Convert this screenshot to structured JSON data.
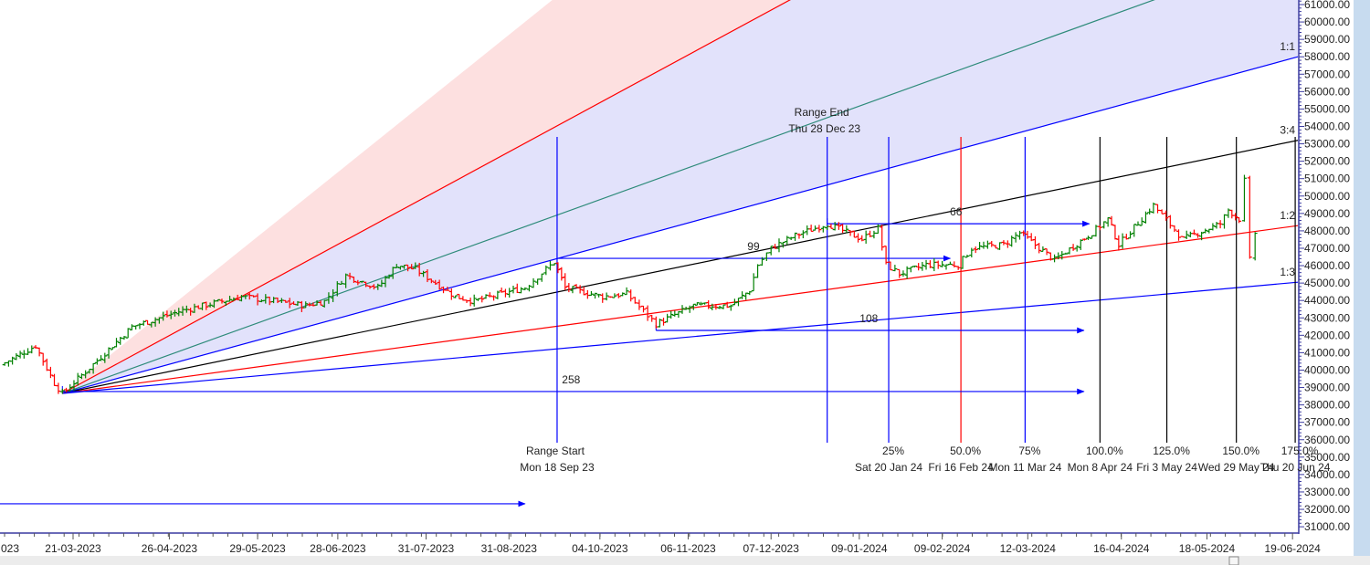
{
  "chart_data": {
    "type": "ohlc-bar",
    "title": "",
    "y_axis": {
      "min": 31000,
      "max": 61000,
      "step": 1000,
      "position": "right",
      "tick_labels": [
        "61000.00",
        "60000.00",
        "59000.00",
        "58000.00",
        "57000.00",
        "56000.00",
        "55000.00",
        "54000.00",
        "53000.00",
        "52000.00",
        "51000.00",
        "50000.00",
        "49000.00",
        "48000.00",
        "47000.00",
        "46000.00",
        "45000.00",
        "44000.00",
        "43000.00",
        "42000.00",
        "41000.00",
        "40000.00",
        "39000.00",
        "38000.00",
        "37000.00",
        "36000.00",
        "35000.00",
        "34000.00",
        "33000.00",
        "32000.00",
        "31000.00"
      ]
    },
    "x_axis": {
      "ticks": [
        {
          "label": "023",
          "date": "2023-02-15"
        },
        {
          "label": "21-03-2023",
          "date": "2023-03-21"
        },
        {
          "label": "26-04-2023",
          "date": "2023-04-26"
        },
        {
          "label": "29-05-2023",
          "date": "2023-05-29"
        },
        {
          "label": "28-06-2023",
          "date": "2023-06-28"
        },
        {
          "label": "31-07-2023",
          "date": "2023-07-31"
        },
        {
          "label": "31-08-2023",
          "date": "2023-08-31"
        },
        {
          "label": "04-10-2023",
          "date": "2023-10-04"
        },
        {
          "label": "06-11-2023",
          "date": "2023-11-06"
        },
        {
          "label": "07-12-2023",
          "date": "2023-12-07"
        },
        {
          "label": "09-01-2024",
          "date": "2024-01-09"
        },
        {
          "label": "09-02-2024",
          "date": "2024-02-09"
        },
        {
          "label": "12-03-2024",
          "date": "2024-03-12"
        },
        {
          "label": "16-04-2024",
          "date": "2024-04-16"
        },
        {
          "label": "18-05-2024",
          "date": "2024-05-18"
        },
        {
          "label": "19-06-2024",
          "date": "2024-06-19"
        }
      ]
    },
    "price_path": [
      [
        "2023-02-22",
        40300
      ],
      [
        "2023-03-07",
        41400
      ],
      [
        "2023-03-14",
        39240
      ],
      [
        "2023-03-17",
        38660
      ],
      [
        "2023-03-30",
        40550
      ],
      [
        "2023-04-12",
        42490
      ],
      [
        "2023-05-01",
        43430
      ],
      [
        "2023-05-23",
        44220
      ],
      [
        "2023-06-16",
        43700
      ],
      [
        "2023-06-23",
        43960
      ],
      [
        "2023-07-01",
        45430
      ],
      [
        "2023-07-13",
        44740
      ],
      [
        "2023-07-20",
        46050
      ],
      [
        "2023-07-27",
        45790
      ],
      [
        "2023-08-11",
        44220
      ],
      [
        "2023-08-18",
        43960
      ],
      [
        "2023-09-06",
        44740
      ],
      [
        "2023-09-17",
        46210
      ],
      [
        "2023-09-21",
        44740
      ],
      [
        "2023-10-05",
        44220
      ],
      [
        "2023-10-14",
        44380
      ],
      [
        "2023-10-25",
        42650
      ],
      [
        "2023-11-08",
        43700
      ],
      [
        "2023-11-22",
        43700
      ],
      [
        "2023-11-29",
        44590
      ],
      [
        "2023-12-02",
        46050
      ],
      [
        "2023-12-07",
        47000
      ],
      [
        "2023-12-16",
        47730
      ],
      [
        "2023-12-28",
        48410
      ],
      [
        "2024-01-10",
        47520
      ],
      [
        "2024-01-16",
        48150
      ],
      [
        "2024-01-19",
        46050
      ],
      [
        "2024-01-24",
        45530
      ],
      [
        "2024-02-03",
        46050
      ],
      [
        "2024-02-15",
        46050
      ],
      [
        "2024-02-20",
        47000
      ],
      [
        "2024-03-03",
        47210
      ],
      [
        "2024-03-09",
        47890
      ],
      [
        "2024-03-22",
        46320
      ],
      [
        "2024-04-05",
        47890
      ],
      [
        "2024-04-11",
        48680
      ],
      [
        "2024-04-15",
        47210
      ],
      [
        "2024-04-28",
        49460
      ],
      [
        "2024-05-09",
        47520
      ],
      [
        "2024-05-23",
        48410
      ],
      [
        "2024-05-26",
        49200
      ],
      [
        "2024-05-30",
        48680
      ],
      [
        "2024-06-01",
        50880
      ],
      [
        "2024-06-03",
        46320
      ],
      [
        "2024-06-05",
        47890
      ]
    ],
    "gann_fan": {
      "origin": {
        "date": "2023-03-17",
        "price": 38660
      },
      "end_date": "2024-06-21",
      "lines": [
        {
          "label": "",
          "end_price": 95660,
          "color": "#ffb0b0",
          "visible": false
        },
        {
          "label": "",
          "end_price": 77050,
          "color": "#ff0000"
        },
        {
          "label": "",
          "end_price": 64250,
          "color": "#2e8b7a"
        },
        {
          "label": "1:1",
          "end_price": 58000,
          "color": "#0000ff"
        },
        {
          "label": "3:4",
          "end_price": 53200,
          "color": "#000000"
        },
        {
          "label": "1:2",
          "end_price": 48300,
          "color": "#ff0000"
        },
        {
          "label": "1:3",
          "end_price": 45050,
          "color": "#0000ff"
        }
      ],
      "fill_colors": {
        "upper": "#fde0e0",
        "middle": "#e2e2fb"
      }
    },
    "range": {
      "start": {
        "title": "Range Start",
        "date_label": "Mon 18 Sep 23",
        "date": "2023-09-18"
      },
      "end": {
        "title": "Range End",
        "date_label": "Thu 28 Dec 23",
        "date": "2023-12-28"
      }
    },
    "time_projections": [
      {
        "pct": "25%",
        "date_label": "Sat 20 Jan 24",
        "date": "2024-01-20",
        "color": "#0000ff"
      },
      {
        "pct": "50.0%",
        "date_label": "Fri 16 Feb 24",
        "date": "2024-02-16",
        "color": "#ff0000"
      },
      {
        "pct": "75%",
        "date_label": "Mon 11 Mar 24",
        "date": "2024-03-11",
        "color": "#0000ff"
      },
      {
        "pct": "100.0%",
        "date_label": "Mon 8 Apr 24",
        "date": "2024-04-08",
        "color": "#000000"
      },
      {
        "pct": "125.0%",
        "date_label": "Fri 3 May 24",
        "date": "2024-05-03",
        "color": "#000000"
      },
      {
        "pct": "150.0%",
        "date_label": "Wed 29 May 24",
        "date": "2024-05-29",
        "color": "#000000"
      },
      {
        "pct": "175.0%",
        "date_label": "Thu 20 Jun 24",
        "date": "2024-06-20",
        "color": "#000000"
      }
    ],
    "bar_counts": [
      {
        "label": "258",
        "price": 38770,
        "from": "2023-03-17",
        "to": "2024-04-02"
      },
      {
        "label": "108",
        "price": 42280,
        "from": "2023-10-25",
        "to": "2024-04-02"
      },
      {
        "label": "99",
        "price": 46420,
        "from": "2023-09-18",
        "to": "2024-02-12"
      },
      {
        "label": "66",
        "price": 48410,
        "from": "2023-12-28",
        "to": "2024-04-04"
      },
      {
        "label": "",
        "price": 32320,
        "from": null,
        "to": "2023-09-06"
      }
    ],
    "colors": {
      "up": "#008000",
      "down": "#ff0000",
      "axis": "#3a3aa0"
    }
  }
}
